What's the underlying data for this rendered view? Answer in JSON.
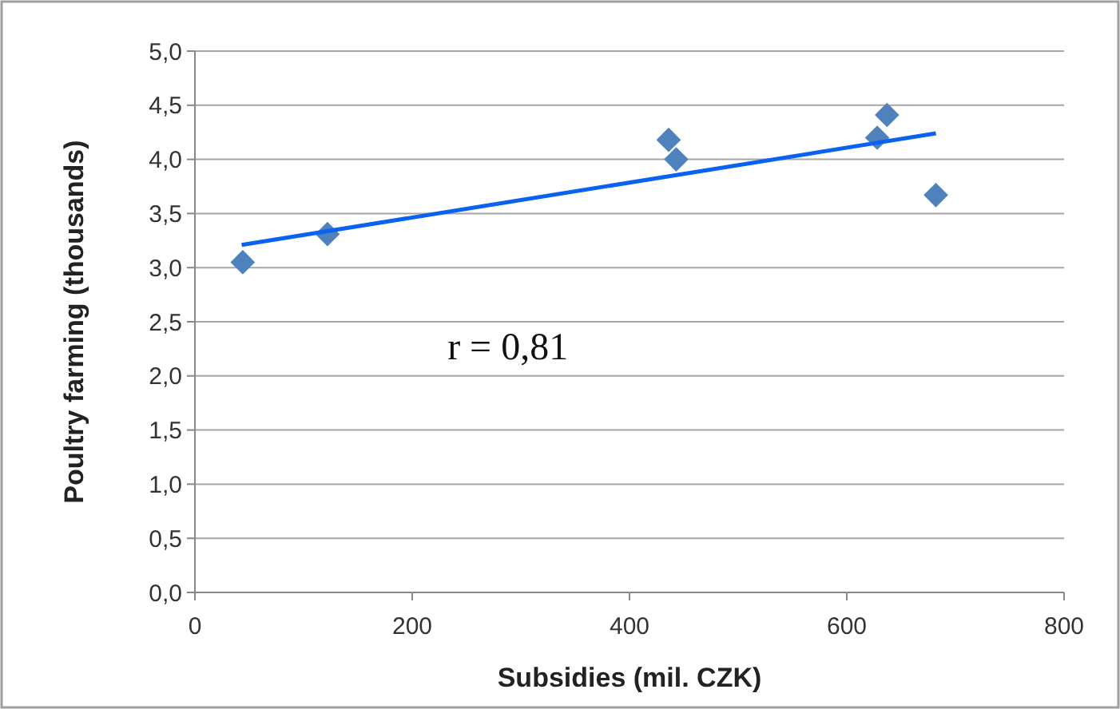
{
  "chart_data": {
    "type": "scatter",
    "xlabel": "Subsidies (mil. CZK)",
    "ylabel": "Poultry farming (thousands)",
    "xlim": [
      0,
      800
    ],
    "xticks": [
      0,
      200,
      400,
      600,
      800
    ],
    "ylim": [
      0,
      5
    ],
    "yticks": [
      {
        "value": 0,
        "label": "0,0"
      },
      {
        "value": 0.5,
        "label": "0,5"
      },
      {
        "value": 1,
        "label": "1,0"
      },
      {
        "value": 1.5,
        "label": "1,5"
      },
      {
        "value": 2,
        "label": "2,0"
      },
      {
        "value": 2.5,
        "label": "2,5"
      },
      {
        "value": 3,
        "label": "3,0"
      },
      {
        "value": 3.5,
        "label": "3,5"
      },
      {
        "value": 4,
        "label": "4,0"
      },
      {
        "value": 4.5,
        "label": "4,5"
      },
      {
        "value": 5,
        "label": "5,0"
      }
    ],
    "grid": "y",
    "annotations": [
      "r = 0,81"
    ],
    "series": [
      {
        "marker": "diamond",
        "color": "#4f81bd",
        "x": [
          44,
          122,
          436,
          443,
          628,
          637,
          682
        ],
        "values": [
          3.05,
          3.31,
          4.18,
          4.0,
          4.2,
          4.41,
          3.67
        ]
      },
      {
        "type": "line",
        "marker": "none",
        "color": "#0a62f0",
        "x": [
          43,
          682
        ],
        "values": [
          3.21,
          4.24
        ]
      }
    ]
  }
}
